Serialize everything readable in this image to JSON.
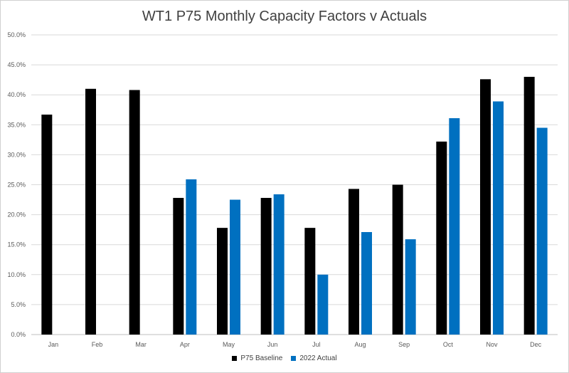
{
  "chart_data": {
    "type": "bar",
    "title": "WT1 P75 Monthly Capacity Factors v Actuals",
    "xlabel": "",
    "ylabel": "",
    "categories": [
      "Jan",
      "Feb",
      "Mar",
      "Apr",
      "May",
      "Jun",
      "Jul",
      "Aug",
      "Sep",
      "Oct",
      "Nov",
      "Dec"
    ],
    "series": [
      {
        "name": "P75 Baseline",
        "color": "#000000",
        "values": [
          36.7,
          41.0,
          40.8,
          22.8,
          17.8,
          22.8,
          17.8,
          24.3,
          25.0,
          32.2,
          42.6,
          43.0
        ]
      },
      {
        "name": "2022 Actual",
        "color": "#0070c0",
        "values": [
          null,
          null,
          null,
          25.9,
          22.5,
          23.4,
          10.0,
          17.1,
          15.9,
          36.1,
          38.9,
          34.5
        ]
      }
    ],
    "ylim": [
      0,
      50
    ],
    "yticks": [
      "0.0%",
      "5.0%",
      "10.0%",
      "15.0%",
      "20.0%",
      "25.0%",
      "30.0%",
      "35.0%",
      "40.0%",
      "45.0%",
      "50.0%"
    ],
    "grid": true,
    "legend_position": "bottom"
  }
}
